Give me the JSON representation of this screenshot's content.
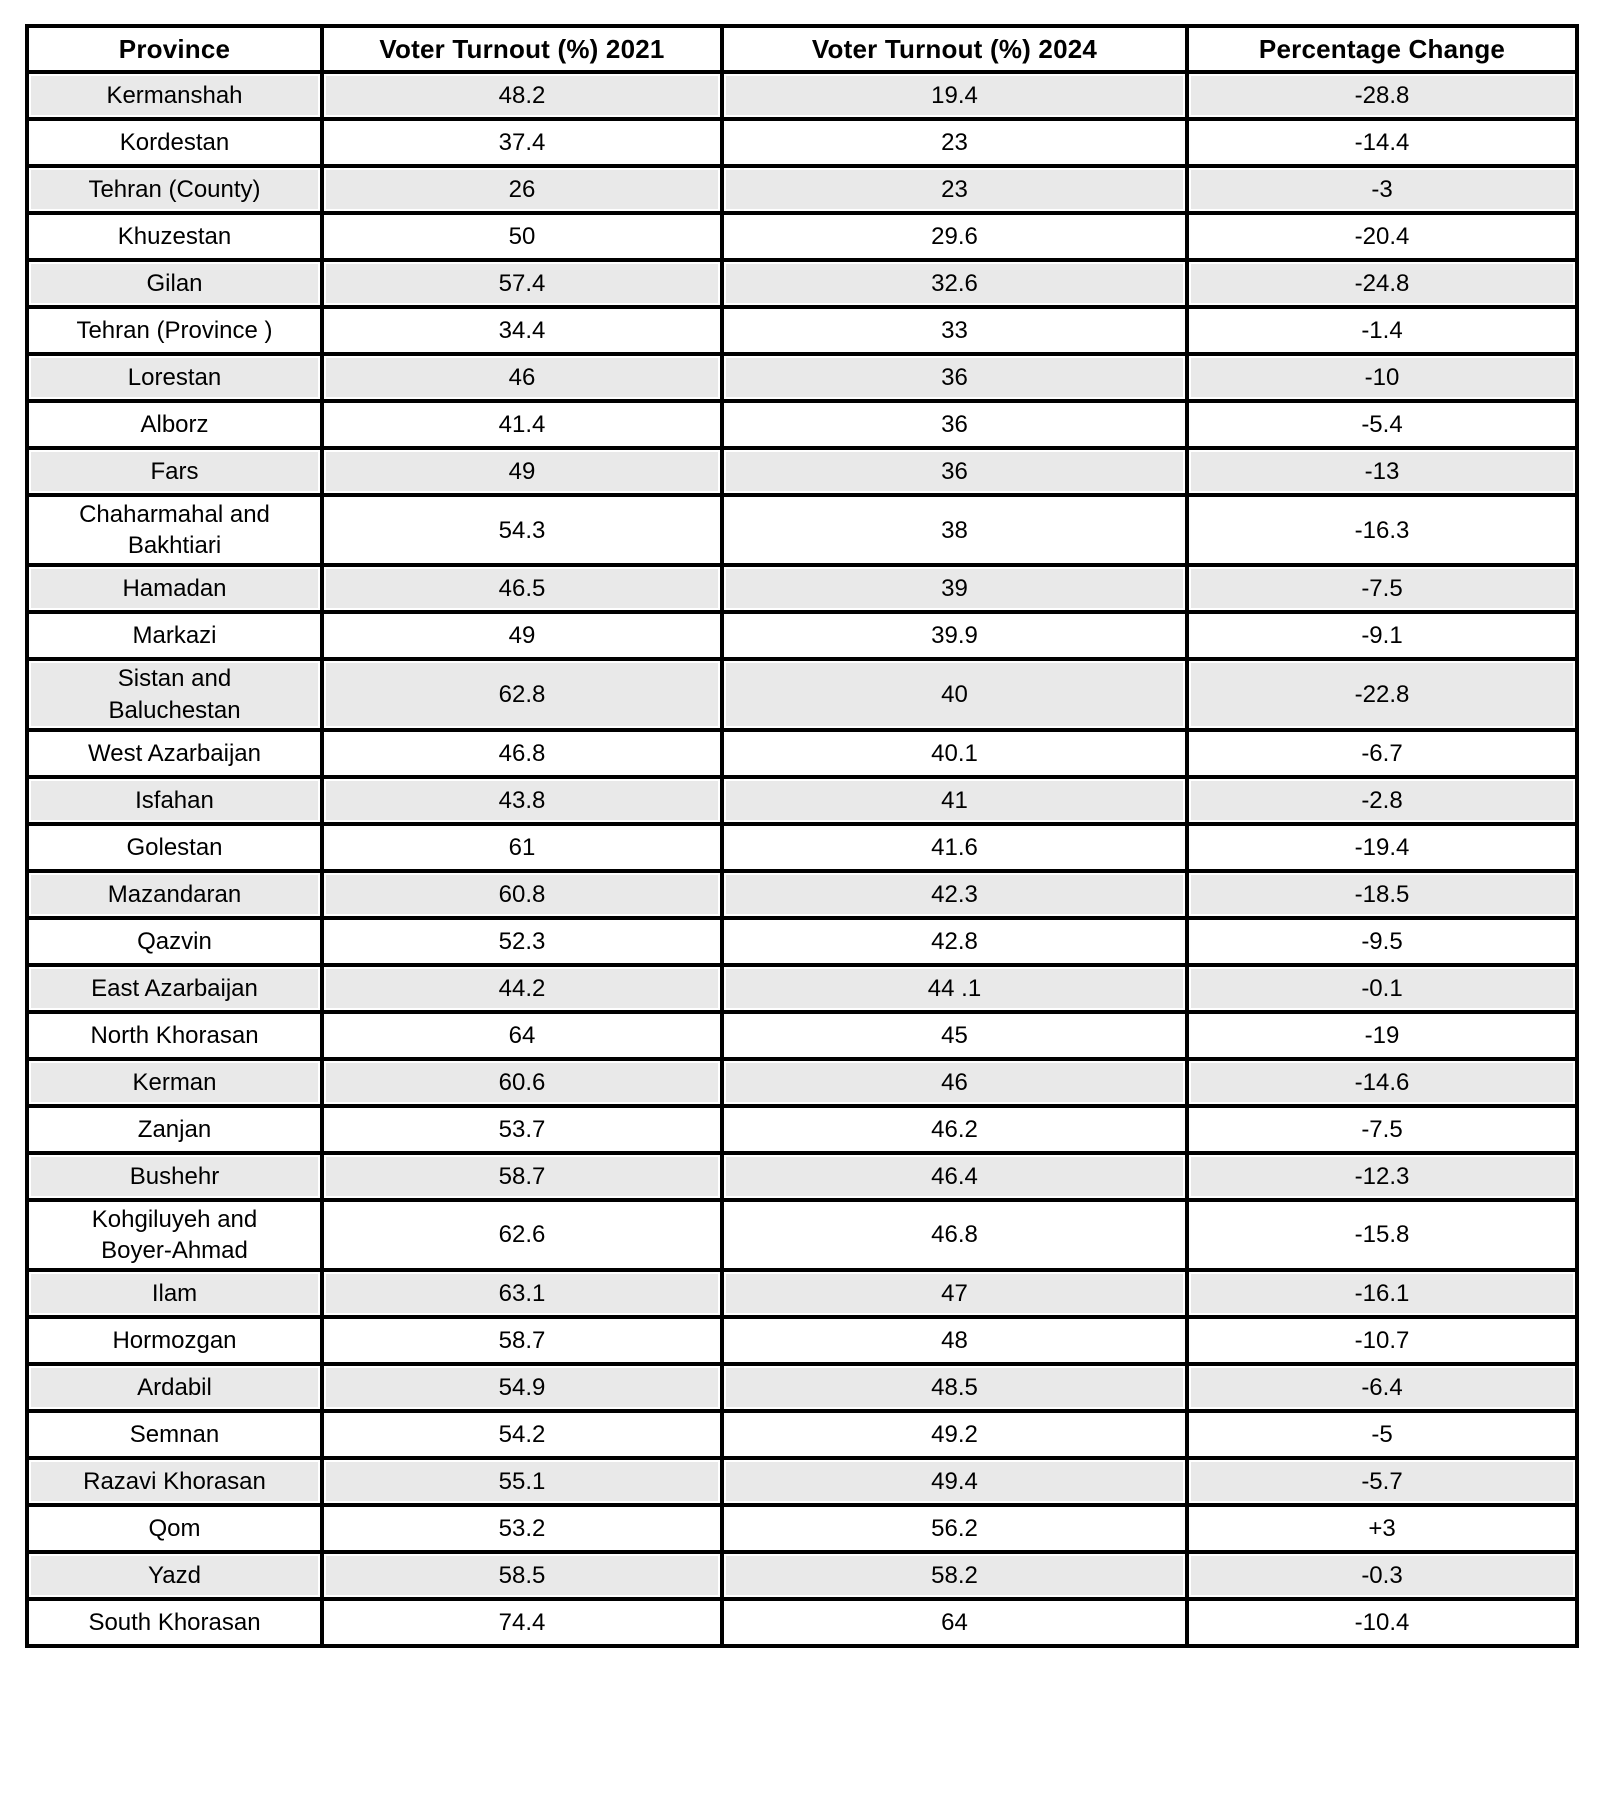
{
  "table": {
    "columns": [
      "Province",
      "Voter Turnout (%) 2021",
      "Voter Turnout (%) 2024",
      "Percentage Change"
    ],
    "rows": [
      {
        "province": "Kermanshah",
        "turnout_2021": "48.2",
        "turnout_2024": "19.4",
        "change": "-28.8"
      },
      {
        "province": "Kordestan",
        "turnout_2021": "37.4",
        "turnout_2024": "23",
        "change": "-14.4"
      },
      {
        "province": "Tehran (County)",
        "turnout_2021": "26",
        "turnout_2024": "23",
        "change": "-3"
      },
      {
        "province": "Khuzestan",
        "turnout_2021": "50",
        "turnout_2024": "29.6",
        "change": "-20.4"
      },
      {
        "province": "Gilan",
        "turnout_2021": "57.4",
        "turnout_2024": "32.6",
        "change": "-24.8"
      },
      {
        "province": "Tehran (Province )",
        "turnout_2021": "34.4",
        "turnout_2024": "33",
        "change": "-1.4"
      },
      {
        "province": "Lorestan",
        "turnout_2021": "46",
        "turnout_2024": "36",
        "change": "-10"
      },
      {
        "province": "Alborz",
        "turnout_2021": "41.4",
        "turnout_2024": "36",
        "change": "-5.4"
      },
      {
        "province": "Fars",
        "turnout_2021": "49",
        "turnout_2024": "36",
        "change": "-13"
      },
      {
        "province": "Chaharmahal and\nBakhtiari",
        "turnout_2021": "54.3",
        "turnout_2024": "38",
        "change": "-16.3"
      },
      {
        "province": "Hamadan",
        "turnout_2021": "46.5",
        "turnout_2024": "39",
        "change": "-7.5"
      },
      {
        "province": "Markazi",
        "turnout_2021": "49",
        "turnout_2024": "39.9",
        "change": "-9.1"
      },
      {
        "province": "Sistan and\nBaluchestan",
        "turnout_2021": "62.8",
        "turnout_2024": "40",
        "change": "-22.8"
      },
      {
        "province": "West Azarbaijan",
        "turnout_2021": "46.8",
        "turnout_2024": "40.1",
        "change": "-6.7"
      },
      {
        "province": "Isfahan",
        "turnout_2021": "43.8",
        "turnout_2024": "41",
        "change": "-2.8"
      },
      {
        "province": "Golestan",
        "turnout_2021": "61",
        "turnout_2024": "41.6",
        "change": "-19.4"
      },
      {
        "province": "Mazandaran",
        "turnout_2021": "60.8",
        "turnout_2024": "42.3",
        "change": "-18.5"
      },
      {
        "province": "Qazvin",
        "turnout_2021": "52.3",
        "turnout_2024": "42.8",
        "change": "-9.5"
      },
      {
        "province": "East Azarbaijan",
        "turnout_2021": "44.2",
        "turnout_2024": "44 .1",
        "change": "-0.1"
      },
      {
        "province": "North Khorasan",
        "turnout_2021": "64",
        "turnout_2024": "45",
        "change": "-19"
      },
      {
        "province": "Kerman",
        "turnout_2021": "60.6",
        "turnout_2024": "46",
        "change": "-14.6"
      },
      {
        "province": "Zanjan",
        "turnout_2021": "53.7",
        "turnout_2024": "46.2",
        "change": "-7.5"
      },
      {
        "province": "Bushehr",
        "turnout_2021": "58.7",
        "turnout_2024": "46.4",
        "change": "-12.3"
      },
      {
        "province": "Kohgiluyeh and\nBoyer-Ahmad",
        "turnout_2021": "62.6",
        "turnout_2024": "46.8",
        "change": "-15.8"
      },
      {
        "province": "Ilam",
        "turnout_2021": "63.1",
        "turnout_2024": "47",
        "change": "-16.1"
      },
      {
        "province": "Hormozgan",
        "turnout_2021": "58.7",
        "turnout_2024": "48",
        "change": "-10.7"
      },
      {
        "province": "Ardabil",
        "turnout_2021": "54.9",
        "turnout_2024": "48.5",
        "change": "-6.4"
      },
      {
        "province": "Semnan",
        "turnout_2021": "54.2",
        "turnout_2024": "49.2",
        "change": "-5"
      },
      {
        "province": "Razavi Khorasan",
        "turnout_2021": "55.1",
        "turnout_2024": "49.4",
        "change": "-5.7"
      },
      {
        "province": "Qom",
        "turnout_2021": "53.2",
        "turnout_2024": "56.2",
        "change": "+3"
      },
      {
        "province": "Yazd",
        "turnout_2021": "58.5",
        "turnout_2024": "58.2",
        "change": "-0.3"
      },
      {
        "province": "South Khorasan",
        "turnout_2021": "74.4",
        "turnout_2024": "64",
        "change": "-10.4"
      }
    ]
  },
  "colors": {
    "row_alt_background": "#e9e9e9",
    "row_base_background": "#ffffff",
    "border": "#000000",
    "text": "#000000"
  },
  "chart_data": {
    "type": "table",
    "title": "",
    "columns": [
      "Province",
      "Voter Turnout (%) 2021",
      "Voter Turnout (%) 2024",
      "Percentage Change"
    ],
    "rows": [
      [
        "Kermanshah",
        48.2,
        19.4,
        -28.8
      ],
      [
        "Kordestan",
        37.4,
        23,
        -14.4
      ],
      [
        "Tehran (County)",
        26,
        23,
        -3
      ],
      [
        "Khuzestan",
        50,
        29.6,
        -20.4
      ],
      [
        "Gilan",
        57.4,
        32.6,
        -24.8
      ],
      [
        "Tehran (Province )",
        34.4,
        33,
        -1.4
      ],
      [
        "Lorestan",
        46,
        36,
        -10
      ],
      [
        "Alborz",
        41.4,
        36,
        -5.4
      ],
      [
        "Fars",
        49,
        36,
        -13
      ],
      [
        "Chaharmahal and Bakhtiari",
        54.3,
        38,
        -16.3
      ],
      [
        "Hamadan",
        46.5,
        39,
        -7.5
      ],
      [
        "Markazi",
        49,
        39.9,
        -9.1
      ],
      [
        "Sistan and Baluchestan",
        62.8,
        40,
        -22.8
      ],
      [
        "West Azarbaijan",
        46.8,
        40.1,
        -6.7
      ],
      [
        "Isfahan",
        43.8,
        41,
        -2.8
      ],
      [
        "Golestan",
        61,
        41.6,
        -19.4
      ],
      [
        "Mazandaran",
        60.8,
        42.3,
        -18.5
      ],
      [
        "Qazvin",
        52.3,
        42.8,
        -9.5
      ],
      [
        "East Azarbaijan",
        44.2,
        44.1,
        -0.1
      ],
      [
        "North Khorasan",
        64,
        45,
        -19
      ],
      [
        "Kerman",
        60.6,
        46,
        -14.6
      ],
      [
        "Zanjan",
        53.7,
        46.2,
        -7.5
      ],
      [
        "Bushehr",
        58.7,
        46.4,
        -12.3
      ],
      [
        "Kohgiluyeh and Boyer-Ahmad",
        62.6,
        46.8,
        -15.8
      ],
      [
        "Ilam",
        63.1,
        47,
        -16.1
      ],
      [
        "Hormozgan",
        58.7,
        48,
        -10.7
      ],
      [
        "Ardabil",
        54.9,
        48.5,
        -6.4
      ],
      [
        "Semnan",
        54.2,
        49.2,
        -5
      ],
      [
        "Razavi Khorasan",
        55.1,
        49.4,
        -5.7
      ],
      [
        "Qom",
        53.2,
        56.2,
        3
      ],
      [
        "Yazd",
        58.5,
        58.2,
        -0.3
      ],
      [
        "South Khorasan",
        74.4,
        64,
        -10.4
      ]
    ]
  }
}
